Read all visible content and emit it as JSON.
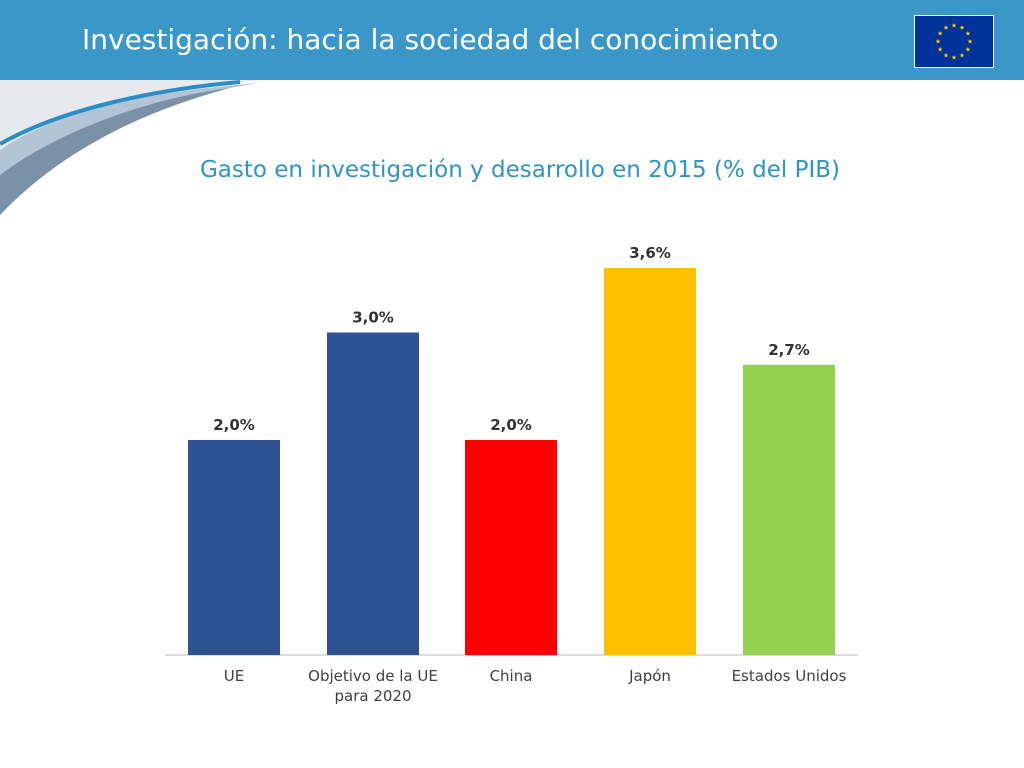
{
  "header": {
    "title": "Investigación: hacia la sociedad del conocimiento",
    "flag_icon": "eu-flag-icon"
  },
  "colors": {
    "header": "#3a97c8",
    "title": "#2f95c3",
    "eu_blue": "#2e5394",
    "china_red": "#ff0000",
    "japan_yellow": "#ffc000",
    "usa_green": "#92d050"
  },
  "chart_data": {
    "type": "bar",
    "title": "Gasto en investigación y desarrollo en 2015 (% del PIB)",
    "categories": [
      {
        "line1": "UE",
        "line2": ""
      },
      {
        "line1": "Objetivo de la UE",
        "line2": "para 2020"
      },
      {
        "line1": "China",
        "line2": ""
      },
      {
        "line1": "Japón",
        "line2": ""
      },
      {
        "line1": "Estados Unidos",
        "line2": ""
      }
    ],
    "values": [
      2.0,
      3.0,
      2.0,
      3.6,
      2.7
    ],
    "value_labels": [
      "2,0%",
      "3,0%",
      "2,0%",
      "3,6%",
      "2,7%"
    ],
    "bar_colors": [
      "#2e5394",
      "#2e5394",
      "#ff0000",
      "#ffc000",
      "#92d050"
    ],
    "xlabel": "",
    "ylabel": "",
    "ylim": [
      0,
      3.6
    ],
    "grid": false,
    "legend": "none"
  }
}
